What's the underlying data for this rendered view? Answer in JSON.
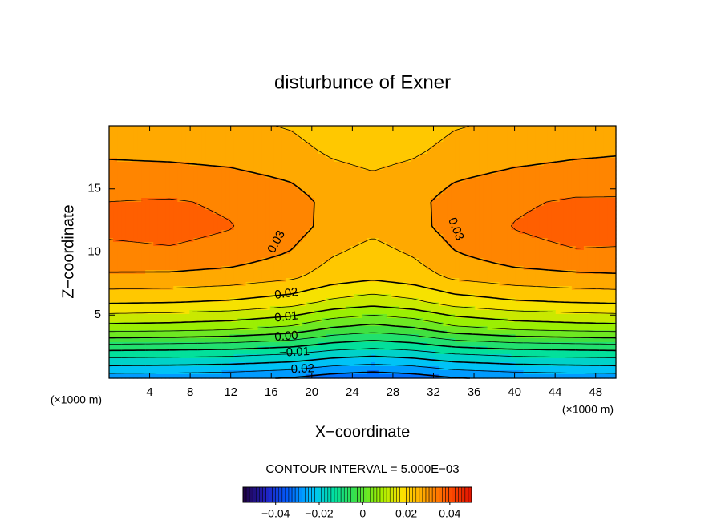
{
  "chart_data": {
    "type": "contour",
    "title": "disturbunce of Exner",
    "xlabel": "X−coordinate",
    "ylabel": "Z−coordinate",
    "xunit": "(×1000 m)",
    "yunit": "(×1000 m)",
    "contour_interval_label": "CONTOUR INTERVAL = 5.000E−03",
    "xlim": [
      0,
      50
    ],
    "ylim": [
      0,
      20
    ],
    "xticks": [
      4,
      8,
      12,
      16,
      20,
      24,
      28,
      32,
      36,
      40,
      44,
      48
    ],
    "yticks": [
      5,
      10,
      15
    ],
    "x": [
      0,
      6,
      12,
      18,
      22,
      26,
      30,
      34,
      40,
      46,
      50
    ],
    "y": [
      0,
      2,
      4,
      6,
      8,
      10,
      12,
      14,
      16,
      18,
      20
    ],
    "z": [
      [
        -0.028,
        -0.0283,
        -0.0289,
        -0.0304,
        -0.0328,
        -0.034,
        -0.0328,
        -0.0304,
        -0.0289,
        -0.0283,
        -0.028
      ],
      [
        -0.012,
        -0.0123,
        -0.0129,
        -0.0144,
        -0.0168,
        -0.018,
        -0.0168,
        -0.0144,
        -0.0129,
        -0.0123,
        -0.012
      ],
      [
        0.008,
        0.0075,
        0.0065,
        0.004,
        0.0,
        -0.002,
        0.0,
        0.004,
        0.0065,
        0.0075,
        0.008
      ],
      [
        0.0205,
        0.0201,
        0.0192,
        0.0171,
        0.0137,
        0.012,
        0.0137,
        0.0171,
        0.0192,
        0.0201,
        0.0205
      ],
      [
        0.029,
        0.0288,
        0.0278,
        0.0258,
        0.0226,
        0.021,
        0.0226,
        0.0258,
        0.0278,
        0.0288,
        0.0292
      ],
      [
        0.034,
        0.0345,
        0.0334,
        0.0298,
        0.0256,
        0.0235,
        0.0256,
        0.0298,
        0.0334,
        0.0347,
        0.0345
      ],
      [
        0.036,
        0.0365,
        0.0352,
        0.0321,
        0.0282,
        0.0262,
        0.0282,
        0.0321,
        0.0352,
        0.0368,
        0.0368
      ],
      [
        0.035,
        0.0354,
        0.0343,
        0.0318,
        0.0286,
        0.027,
        0.0286,
        0.0318,
        0.0343,
        0.0356,
        0.0356
      ],
      [
        0.032,
        0.0317,
        0.031,
        0.0294,
        0.0268,
        0.0255,
        0.0268,
        0.0294,
        0.031,
        0.032,
        0.0324
      ],
      [
        0.029,
        0.0287,
        0.0281,
        0.0266,
        0.0242,
        0.023,
        0.0242,
        0.0266,
        0.0281,
        0.029,
        0.0294
      ],
      [
        0.027,
        0.0267,
        0.0261,
        0.0246,
        0.0222,
        0.021,
        0.0222,
        0.0246,
        0.0261,
        0.027,
        0.0272
      ]
    ],
    "levels": [
      -0.035,
      -0.03,
      -0.025,
      -0.02,
      -0.015,
      -0.01,
      -0.005,
      0,
      0.005,
      0.01,
      0.015,
      0.02,
      0.025,
      0.03,
      0.035
    ],
    "contour_labels": [
      {
        "value": 0.03,
        "label": "0.03"
      },
      {
        "value": 0.03,
        "label": "0.03"
      },
      {
        "value": 0.02,
        "label": "0.02"
      },
      {
        "value": 0.01,
        "label": "0.01"
      },
      {
        "value": 0,
        "label": "0.00"
      },
      {
        "value": -0.01,
        "label": "−0.01"
      },
      {
        "value": -0.02,
        "label": "−0.02"
      }
    ],
    "colormap": [
      "#200040",
      "#2020c0",
      "#0060ff",
      "#00c0ff",
      "#00e0a0",
      "#40e040",
      "#a0f000",
      "#ffe000",
      "#ffa000",
      "#ff5000",
      "#e01000"
    ],
    "clim": [
      -0.055,
      0.05
    ],
    "cticks": [
      {
        "value": -0.04,
        "label": "−0.04"
      },
      {
        "value": -0.02,
        "label": "−0.02"
      },
      0,
      0.02,
      0.04
    ]
  }
}
